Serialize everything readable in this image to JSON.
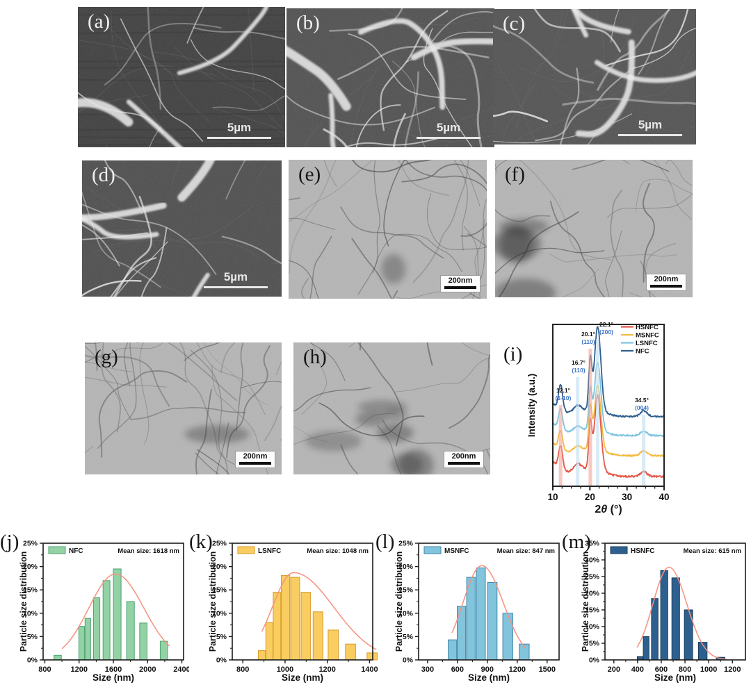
{
  "figure": {
    "background": "#ffffff"
  },
  "panels": {
    "a": {
      "label": "(a)",
      "type": "SEM image",
      "scale_bar": "5µm"
    },
    "b": {
      "label": "(b)",
      "type": "SEM image",
      "scale_bar": "5µm"
    },
    "c": {
      "label": "(c)",
      "type": "SEM image",
      "scale_bar": "5µm"
    },
    "d": {
      "label": "(d)",
      "type": "SEM image",
      "scale_bar": "5µm"
    },
    "e": {
      "label": "(e)",
      "type": "TEM image",
      "scale_bar": "200nm"
    },
    "f": {
      "label": "(f)",
      "type": "TEM image",
      "scale_bar": "200nm"
    },
    "g": {
      "label": "(g)",
      "type": "TEM image",
      "scale_bar": "200nm"
    },
    "h": {
      "label": "(h)",
      "type": "TEM image",
      "scale_bar": "200nm"
    },
    "i": {
      "label": "(i)",
      "type": "XRD pattern"
    },
    "j": {
      "label": "(j)",
      "type": "particle size histogram"
    },
    "k": {
      "label": "(k)",
      "type": "particle size histogram"
    },
    "l": {
      "label": "(l)",
      "type": "particle size histogram"
    },
    "m": {
      "label": "(m)",
      "type": "particle size histogram"
    }
  },
  "chart_data": [
    {
      "id": "i",
      "type": "line",
      "xlabel": "2θ (°)",
      "ylabel": "Intensity (a.u.)",
      "xlim": [
        10,
        40
      ],
      "xticks": [
        10,
        20,
        30,
        40
      ],
      "legend_position": "top-right",
      "legend": [
        {
          "name": "HSNFC",
          "color": "#e4584a"
        },
        {
          "name": "MSNFC",
          "color": "#f3bb40"
        },
        {
          "name": "LSNFC",
          "color": "#7fc5e0"
        },
        {
          "name": "NFC",
          "color": "#2f5f8f"
        }
      ],
      "series": [
        {
          "name": "NFC",
          "color": "#2f5f8f",
          "peaks": [
            [
              12.1,
              0.3
            ],
            [
              16.7,
              0.09
            ],
            [
              20.1,
              0.58
            ],
            [
              22.1,
              1.0
            ],
            [
              34.5,
              0.07
            ]
          ]
        },
        {
          "name": "LSNFC",
          "color": "#7fc5e0",
          "peaks": [
            [
              12.1,
              0.27
            ],
            [
              16.7,
              0.08
            ],
            [
              20.1,
              0.5
            ],
            [
              22.1,
              0.88
            ],
            [
              34.5,
              0.06
            ]
          ]
        },
        {
          "name": "MSNFC",
          "color": "#f3bb40",
          "peaks": [
            [
              12.1,
              0.24
            ],
            [
              16.7,
              0.08
            ],
            [
              20.1,
              0.52
            ],
            [
              22.1,
              0.82
            ],
            [
              34.5,
              0.06
            ]
          ]
        },
        {
          "name": "HSNFC",
          "color": "#e4584a",
          "peaks": [
            [
              12.1,
              0.24
            ],
            [
              16.7,
              0.09
            ],
            [
              20.1,
              0.48
            ],
            [
              22.1,
              0.78
            ],
            [
              34.5,
              0.05
            ]
          ]
        }
      ],
      "peak_annotations": [
        {
          "two_theta": 12.1,
          "angle_label": "12.1°",
          "plane_label": "(1-10)",
          "band": "red"
        },
        {
          "two_theta": 16.7,
          "angle_label": "16.7°",
          "plane_label": "(110)",
          "band": "blue"
        },
        {
          "two_theta": 20.1,
          "angle_label": "20.1°",
          "plane_label": "(110)",
          "band": "red"
        },
        {
          "two_theta": 22.1,
          "angle_label": "22.1°",
          "plane_label": "(200)",
          "band": "blue"
        },
        {
          "two_theta": 34.5,
          "angle_label": "34.5°",
          "plane_label": "(004)",
          "band": "blue"
        }
      ],
      "band_colors": {
        "red": "#f0a89e",
        "blue": "#c3def0"
      },
      "plane_label_color": "#3d74c6"
    },
    {
      "id": "j",
      "type": "bar",
      "series_name": "NFC",
      "mean_label": "Mean size: 1618 nm",
      "mean_size_nm": 1618,
      "xlabel": "Size (nm)",
      "ylabel": "Particle size distribution",
      "xlim": [
        780,
        2420
      ],
      "xticks": [
        800,
        1200,
        1600,
        2000,
        2400
      ],
      "ylim": [
        0,
        25
      ],
      "ytick_step": 5,
      "ytick_suffix": "%",
      "bar_color": "#93d2a4",
      "bar_edge_color": "#4da273",
      "fit_color": "#f4917e",
      "bars": [
        [
          950,
          1.0,
          85
        ],
        [
          1230,
          7.2,
          65
        ],
        [
          1302,
          8.9,
          65
        ],
        [
          1405,
          13.3,
          75
        ],
        [
          1520,
          17.0,
          80
        ],
        [
          1645,
          19.5,
          90
        ],
        [
          1800,
          12.5,
          90
        ],
        [
          1950,
          7.9,
          85
        ],
        [
          2190,
          4.0,
          85
        ]
      ],
      "fit": {
        "mu": 1625,
        "sigma_left": 310,
        "sigma_right": 330,
        "amp": 18.4,
        "range": [
          1000,
          2255
        ]
      }
    },
    {
      "id": "k",
      "type": "bar",
      "series_name": "LSNFC",
      "mean_label": "Mean size: 1048 nm",
      "mean_size_nm": 1048,
      "xlabel": "Size (nm)",
      "ylabel": "Particle size distribution",
      "xlim": [
        750,
        1415
      ],
      "xticks": [
        800,
        1000,
        1200,
        1400
      ],
      "ylim": [
        0,
        25
      ],
      "ytick_step": 5,
      "ytick_suffix": "%",
      "bar_color": "#f9cd60",
      "bar_edge_color": "#d89a28",
      "fit_color": "#f4917e",
      "bars": [
        [
          890,
          2.0,
          34
        ],
        [
          926,
          8.0,
          34
        ],
        [
          962,
          14.5,
          36
        ],
        [
          1002,
          18.1,
          40
        ],
        [
          1048,
          17.7,
          42
        ],
        [
          1098,
          14.5,
          44
        ],
        [
          1156,
          10.3,
          46
        ],
        [
          1228,
          6.4,
          48
        ],
        [
          1310,
          3.4,
          48
        ],
        [
          1412,
          1.5,
          48
        ]
      ],
      "fit": {
        "mu": 1040,
        "sigma_left": 100,
        "sigma_right": 190,
        "amp": 18.7,
        "range": [
          890,
          1432
        ]
      }
    },
    {
      "id": "l",
      "type": "bar",
      "series_name": "MSNFC",
      "mean_label": "Mean size: 847 nm",
      "mean_size_nm": 847,
      "xlabel": "Size (nm)",
      "ylabel": "Particle size distribution",
      "xlim": [
        210,
        1620
      ],
      "xticks": [
        300,
        600,
        900,
        1200,
        1500
      ],
      "ylim": [
        0,
        25
      ],
      "ytick_step": 5,
      "ytick_suffix": "%",
      "bar_color": "#82c4dc",
      "bar_edge_color": "#3d85a8",
      "fit_color": "#f4917e",
      "bars": [
        [
          550,
          4.3,
          85
        ],
        [
          640,
          11.5,
          85
        ],
        [
          735,
          17.7,
          85
        ],
        [
          835,
          19.7,
          90
        ],
        [
          950,
          16.6,
          95
        ],
        [
          1105,
          10.0,
          100
        ],
        [
          1270,
          3.4,
          100
        ]
      ],
      "fit": {
        "mu": 845,
        "sigma_left": 190,
        "sigma_right": 215,
        "amp": 20.2,
        "range": [
          545,
          1285
        ]
      }
    },
    {
      "id": "m",
      "type": "bar",
      "series_name": "HSNFC",
      "mean_label": "Mean size: 615 nm",
      "mean_size_nm": 615,
      "xlabel": "Size (nm)",
      "ylabel": "Particle size distribution",
      "xlim": [
        125,
        1310
      ],
      "xticks": [
        200,
        400,
        600,
        800,
        1000,
        1200
      ],
      "ylim": [
        0,
        35
      ],
      "ytick_step": 5,
      "ytick_suffix": "%",
      "bar_color": "#2e608f",
      "bar_edge_color": "#173c5e",
      "fit_color": "#f4917e",
      "bars": [
        [
          420,
          1.0,
          45
        ],
        [
          472,
          7.0,
          48
        ],
        [
          545,
          18.4,
          55
        ],
        [
          625,
          26.8,
          60
        ],
        [
          722,
          24.6,
          65
        ],
        [
          830,
          15.0,
          70
        ],
        [
          950,
          5.3,
          72
        ],
        [
          1100,
          0.8,
          72
        ]
      ],
      "fit": {
        "mu": 665,
        "sigma_left": 135,
        "sigma_right": 150,
        "amp": 27.8,
        "range": [
          395,
          1150
        ]
      }
    }
  ]
}
